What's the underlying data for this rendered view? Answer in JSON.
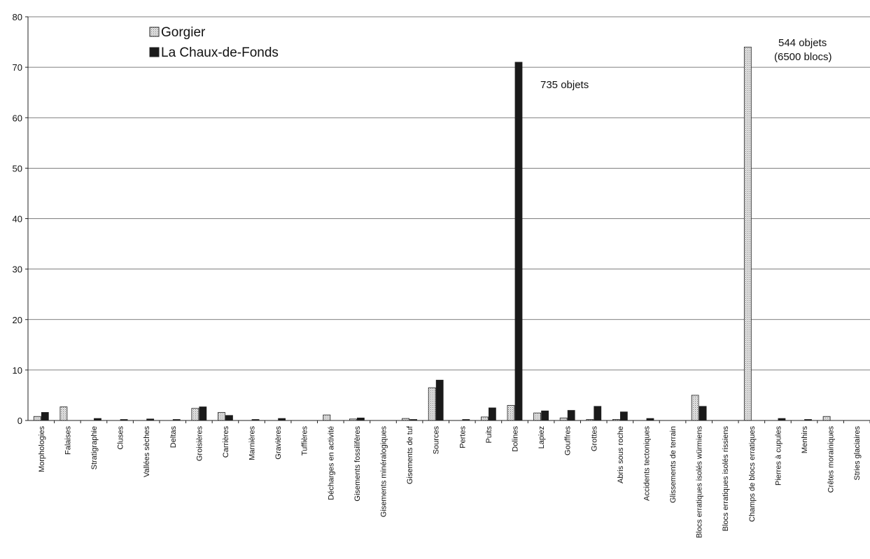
{
  "chart_data": {
    "type": "bar",
    "title": "",
    "xlabel": "",
    "ylabel": "",
    "ylim": [
      0,
      80
    ],
    "yticks": [
      0,
      10,
      20,
      30,
      40,
      50,
      60,
      70,
      80
    ],
    "grid": true,
    "legend_position": "top-left",
    "categories": [
      "Morphologies",
      "Falaises",
      "Stratigraphie",
      "Cluses",
      "Vallées sèches",
      "Deltas",
      "Groisières",
      "Carrières",
      "Marnières",
      "Gravières",
      "Tuffières",
      "Décharges en activité",
      "Gisements fossilifères",
      "Gisements minéralogiques",
      "Gisements de tuf",
      "Sources",
      "Pertes",
      "Puits",
      "Dolines",
      "Lapiez",
      "Gouffres",
      "Grottes",
      "Abris sous roche",
      "Accidents tectoniques",
      "Glissements de terrain",
      "Blocs erratiques isolés würmiens",
      "Blocs erratiques isolés rissiens",
      "Champs de blocs erratiques",
      "Pierres à cupules",
      "Menhirs",
      "Crêtes morainiques",
      "Stries glaciaires"
    ],
    "series": [
      {
        "name": "Gorgier",
        "color": "#d9d9d9",
        "pattern": "dotted",
        "values": [
          0.8,
          2.7,
          0,
          0,
          0,
          0,
          2.4,
          1.6,
          0,
          0,
          0,
          1.1,
          0.3,
          0,
          0.4,
          6.5,
          0,
          0.7,
          3.0,
          1.5,
          0.5,
          0.2,
          0.2,
          0,
          0,
          5.0,
          0,
          74.0,
          0,
          0,
          0.8,
          0
        ]
      },
      {
        "name": "La Chaux-de-Fonds",
        "color": "#1a1a1a",
        "pattern": "solid",
        "values": [
          1.6,
          0,
          0.4,
          0.2,
          0.3,
          0.2,
          2.7,
          1.0,
          0.2,
          0.4,
          0,
          0,
          0.5,
          0,
          0.2,
          8.0,
          0.2,
          2.5,
          71.0,
          1.9,
          2.0,
          2.8,
          1.7,
          0.4,
          0,
          2.8,
          0,
          0,
          0.4,
          0.2,
          0,
          0
        ]
      }
    ],
    "annotations": [
      {
        "text": "735 objets",
        "category": "Dolines"
      },
      {
        "text": "544 objets",
        "category": "Champs de blocs erratiques"
      },
      {
        "text": "(6500 blocs)",
        "category": "Champs de blocs erratiques"
      }
    ]
  }
}
